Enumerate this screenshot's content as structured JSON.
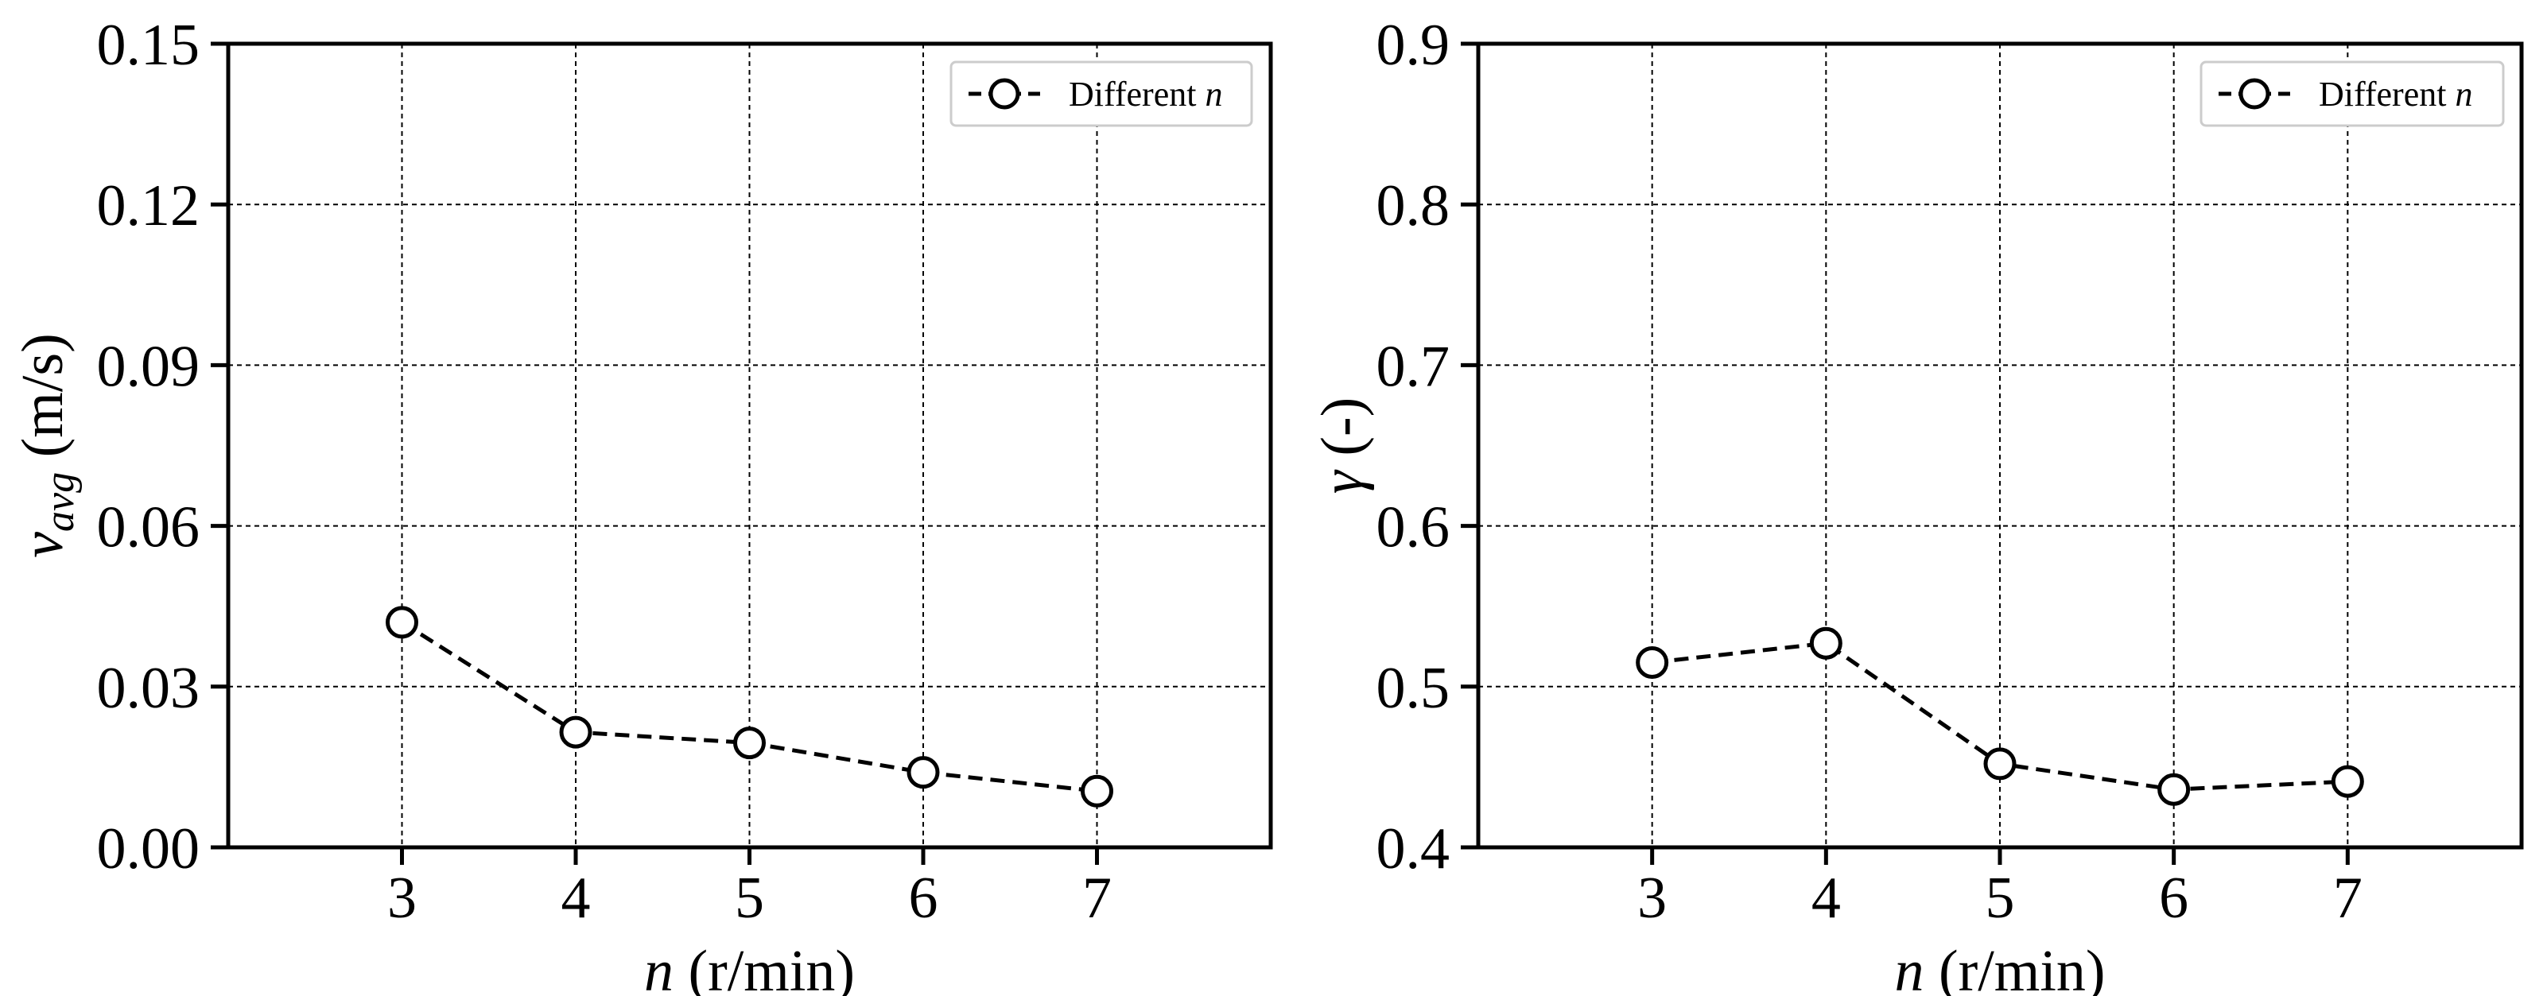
{
  "chart_data": [
    {
      "type": "line",
      "x": [
        3,
        4,
        5,
        6,
        7
      ],
      "series": [
        {
          "name": "Different n",
          "values": [
            0.042,
            0.0215,
            0.0195,
            0.014,
            0.0105
          ]
        }
      ],
      "xlim": [
        2,
        8
      ],
      "ylim": [
        0,
        0.15
      ],
      "xticks": [
        "3",
        "4",
        "5",
        "6",
        "7"
      ],
      "yticks": [
        "0.00",
        "0.03",
        "0.06",
        "0.09",
        "0.12",
        "0.15"
      ],
      "xlabel": {
        "sym": "n",
        "rest": " (r/min)"
      },
      "ylabel": {
        "sym": "v",
        "sub": "avg",
        "rest": " (m/s)"
      },
      "legend": {
        "prefix": "Different ",
        "sym": "n",
        "position": "top-right"
      },
      "grid": true,
      "line_style": "dashed",
      "marker": "open-circle",
      "color": "#000000"
    },
    {
      "type": "line",
      "x": [
        3,
        4,
        5,
        6,
        7
      ],
      "series": [
        {
          "name": "Different n",
          "values": [
            0.515,
            0.527,
            0.452,
            0.436,
            0.441
          ]
        }
      ],
      "xlim": [
        2,
        8
      ],
      "ylim": [
        0.4,
        0.9
      ],
      "xticks": [
        "3",
        "4",
        "5",
        "6",
        "7"
      ],
      "yticks": [
        "0.4",
        "0.5",
        "0.6",
        "0.7",
        "0.8",
        "0.9"
      ],
      "xlabel": {
        "sym": "n",
        "rest": " (r/min)"
      },
      "ylabel": {
        "sym": "γ",
        "sub": "",
        "rest": " (-)"
      },
      "legend": {
        "prefix": "Different ",
        "sym": "n",
        "position": "top-right"
      },
      "grid": true,
      "line_style": "dashed",
      "marker": "open-circle",
      "color": "#000000"
    }
  ]
}
